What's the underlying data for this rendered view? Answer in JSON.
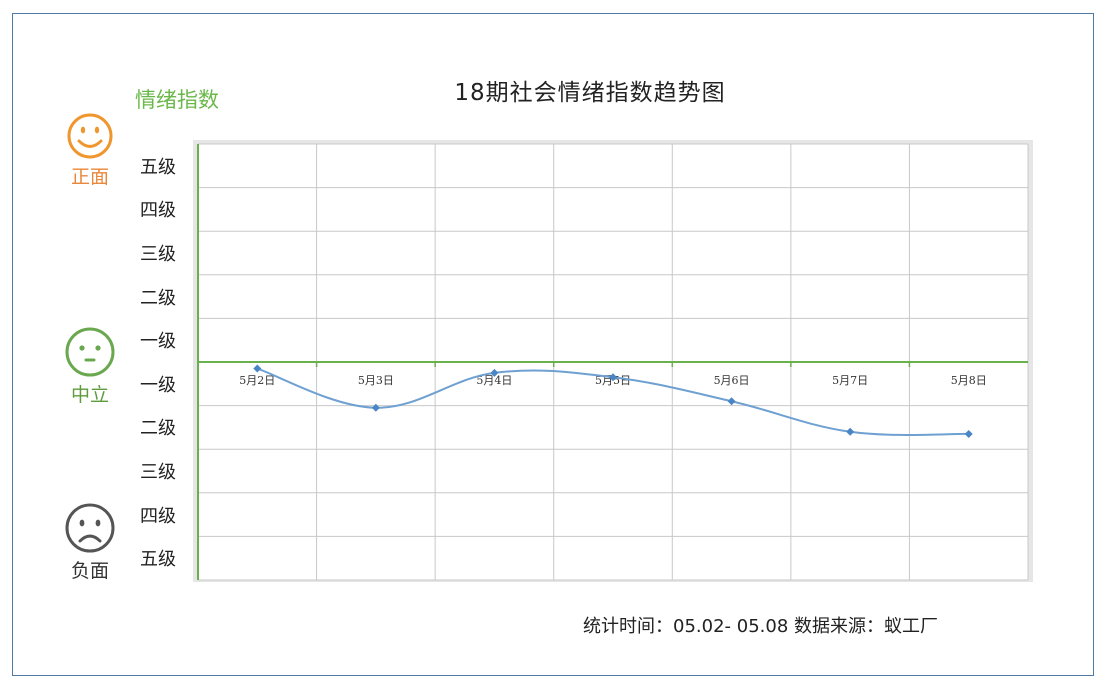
{
  "mood": {
    "positive": {
      "label": "正面",
      "color": "#f0962e",
      "icon": "smiley-face-icon"
    },
    "neutral": {
      "label": "中立",
      "color": "#6aa84f",
      "icon": "neutral-face-icon"
    },
    "negative": {
      "label": "负面",
      "color": "#555555",
      "icon": "sad-face-icon"
    }
  },
  "index_label": "情绪指数",
  "footer": {
    "text": "统计时间：05.02- 05.08 数据来源：蚁工厂"
  },
  "chart_data": {
    "type": "line",
    "title": "18期社会情绪指数趋势图",
    "ylabel": "情绪指数",
    "categories": [
      "5月2日",
      "5月3日",
      "5月4日",
      "5月5日",
      "5月6日",
      "5月7日",
      "5月8日"
    ],
    "series": [
      {
        "values": [
          -0.15,
          -1.05,
          -0.25,
          -0.35,
          -0.9,
          -1.6,
          -1.65
        ],
        "color": "#6fa0d2",
        "marker_color": "#4a86c5"
      }
    ],
    "ylim": [
      -5,
      5
    ],
    "yticks": [
      {
        "value": 5,
        "label": "五级"
      },
      {
        "value": 4,
        "label": "四级"
      },
      {
        "value": 3,
        "label": "三级"
      },
      {
        "value": 2,
        "label": "二级"
      },
      {
        "value": 1,
        "label": "一级"
      },
      {
        "value": -1,
        "label": "一级"
      },
      {
        "value": -2,
        "label": "二级"
      },
      {
        "value": -3,
        "label": "三级"
      },
      {
        "value": -4,
        "label": "四级"
      },
      {
        "value": -5,
        "label": "五级"
      }
    ],
    "grid": true,
    "zero_line_color": "#6ab04c",
    "axis_color": "#6ab04c",
    "smooth": true
  }
}
